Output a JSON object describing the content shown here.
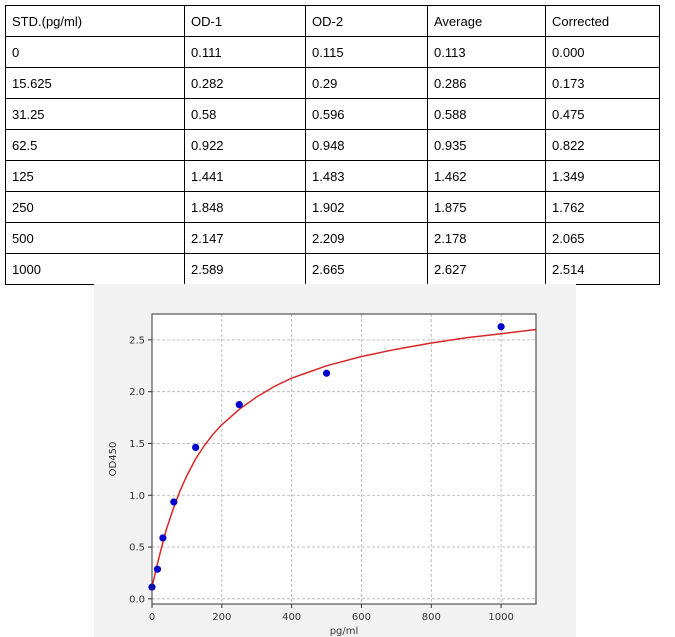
{
  "table": {
    "headers": [
      "STD.(pg/ml)",
      "OD-1",
      "OD-2",
      "Average",
      "Corrected"
    ],
    "rows": [
      [
        "0",
        "0.111",
        "0.115",
        "0.113",
        "0.000"
      ],
      [
        "15.625",
        "0.282",
        "0.29",
        "0.286",
        "0.173"
      ],
      [
        "31.25",
        "0.58",
        "0.596",
        "0.588",
        "0.475"
      ],
      [
        "62.5",
        "0.922",
        "0.948",
        "0.935",
        "0.822"
      ],
      [
        "125",
        "1.441",
        "1.483",
        "1.462",
        "1.349"
      ],
      [
        "250",
        "1.848",
        "1.902",
        "1.875",
        "1.762"
      ],
      [
        "500",
        "2.147",
        "2.209",
        "2.178",
        "2.065"
      ],
      [
        "1000",
        "2.589",
        "2.665",
        "2.627",
        "2.514"
      ]
    ]
  },
  "chart_data": {
    "type": "scatter",
    "title": "",
    "xlabel": "pg/ml",
    "ylabel": "OD450",
    "xlim": [
      0,
      1100
    ],
    "ylim": [
      -0.05,
      2.75
    ],
    "xticks": [
      0,
      200,
      400,
      600,
      800,
      1000
    ],
    "yticks": [
      0.0,
      0.5,
      1.0,
      1.5,
      2.0,
      2.5
    ],
    "xtick_labels": [
      "0",
      "200",
      "400",
      "600",
      "800",
      "1000"
    ],
    "ytick_labels": [
      "0.0",
      "0.5",
      "1.0",
      "1.5",
      "2.0",
      "2.5"
    ],
    "grid": true,
    "series": [
      {
        "type": "scatter",
        "color": "#0000cc",
        "x": [
          0,
          15.625,
          31.25,
          62.5,
          125,
          250,
          500,
          1000
        ],
        "y": [
          0.113,
          0.286,
          0.588,
          0.935,
          1.462,
          1.875,
          2.178,
          2.627
        ]
      },
      {
        "type": "line",
        "color": "#d62728",
        "x": [
          0,
          10,
          20,
          30,
          40,
          50,
          60,
          80,
          100,
          125,
          150,
          175,
          200,
          250,
          300,
          350,
          400,
          450,
          500,
          600,
          700,
          800,
          900,
          1000,
          1100
        ],
        "y": [
          0.113,
          0.26,
          0.4,
          0.53,
          0.66,
          0.76,
          0.86,
          1.04,
          1.19,
          1.35,
          1.48,
          1.59,
          1.68,
          1.83,
          1.95,
          2.05,
          2.13,
          2.19,
          2.25,
          2.34,
          2.41,
          2.47,
          2.52,
          2.56,
          2.6
        ]
      }
    ]
  }
}
